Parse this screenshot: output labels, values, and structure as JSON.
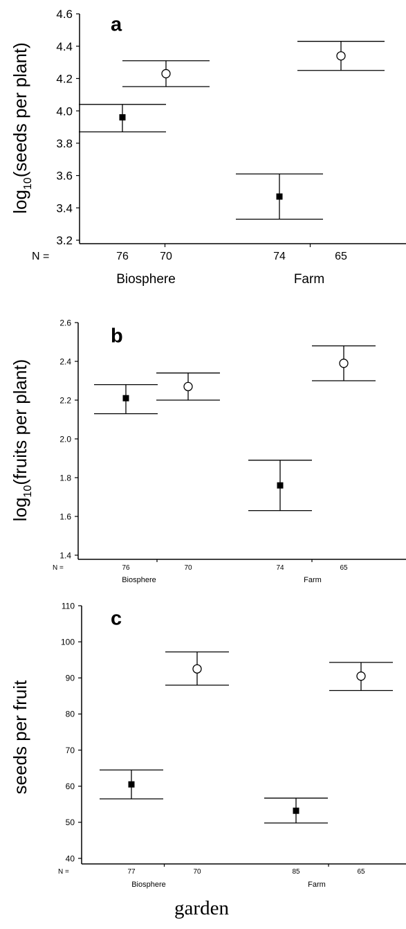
{
  "footer": {
    "xlabel": "garden"
  },
  "chart_data": [
    {
      "type": "scatter",
      "panel_label": "a",
      "ylabel_main": "log",
      "ylabel_sub": "10",
      "ylabel_rest": "(seeds per plant)",
      "ylim": [
        3.2,
        4.6
      ],
      "yticks": [
        "3.2",
        "3.4",
        "3.6",
        "3.8",
        "4.0",
        "4.2",
        "4.4",
        "4.6"
      ],
      "n_prefix": "N =",
      "n_labels": [
        "76",
        "70",
        "74",
        "65"
      ],
      "groups": [
        "Biosphere",
        "Farm"
      ],
      "points": [
        {
          "n": "76",
          "group": "Biosphere",
          "marker": "filled-square",
          "mean": 3.96,
          "low": 3.87,
          "high": 4.04
        },
        {
          "n": "70",
          "group": "Biosphere",
          "marker": "open-circle",
          "mean": 4.23,
          "low": 4.15,
          "high": 4.31
        },
        {
          "n": "74",
          "group": "Farm",
          "marker": "filled-square",
          "mean": 3.47,
          "low": 3.33,
          "high": 3.61
        },
        {
          "n": "65",
          "group": "Farm",
          "marker": "open-circle",
          "mean": 4.34,
          "low": 4.25,
          "high": 4.43
        }
      ]
    },
    {
      "type": "scatter",
      "panel_label": "b",
      "ylabel_main": "log",
      "ylabel_sub": "10",
      "ylabel_rest": "(fruits per plant)",
      "ylim": [
        1.4,
        2.6
      ],
      "yticks": [
        "1.4",
        "1.6",
        "1.8",
        "2.0",
        "2.2",
        "2.4",
        "2.6"
      ],
      "n_prefix": "N =",
      "n_labels": [
        "76",
        "70",
        "74",
        "65"
      ],
      "groups": [
        "Biosphere",
        "Farm"
      ],
      "points": [
        {
          "n": "76",
          "group": "Biosphere",
          "marker": "filled-square",
          "mean": 2.21,
          "low": 2.13,
          "high": 2.28
        },
        {
          "n": "70",
          "group": "Biosphere",
          "marker": "open-circle",
          "mean": 2.27,
          "low": 2.2,
          "high": 2.34
        },
        {
          "n": "74",
          "group": "Farm",
          "marker": "filled-square",
          "mean": 1.76,
          "low": 1.63,
          "high": 1.89
        },
        {
          "n": "65",
          "group": "Farm",
          "marker": "open-circle",
          "mean": 2.39,
          "low": 2.3,
          "high": 2.48
        }
      ]
    },
    {
      "type": "scatter",
      "panel_label": "c",
      "ylabel_main": "seeds per fruit",
      "ylabel_sub": "",
      "ylabel_rest": "",
      "ylim": [
        40,
        110
      ],
      "yticks": [
        "40",
        "50",
        "60",
        "70",
        "80",
        "90",
        "100",
        "110"
      ],
      "n_prefix": "N =",
      "n_labels": [
        "77",
        "70",
        "85",
        "65"
      ],
      "groups": [
        "Biosphere",
        "Farm"
      ],
      "points": [
        {
          "n": "77",
          "group": "Biosphere",
          "marker": "filled-square",
          "mean": 60.5,
          "low": 56.5,
          "high": 64.5
        },
        {
          "n": "70",
          "group": "Biosphere",
          "marker": "open-circle",
          "mean": 92.5,
          "low": 88,
          "high": 97.2
        },
        {
          "n": "85",
          "group": "Farm",
          "marker": "filled-square",
          "mean": 53.2,
          "low": 49.8,
          "high": 56.7
        },
        {
          "n": "65",
          "group": "Farm",
          "marker": "open-circle",
          "mean": 90.5,
          "low": 86.5,
          "high": 94.3
        }
      ]
    }
  ]
}
